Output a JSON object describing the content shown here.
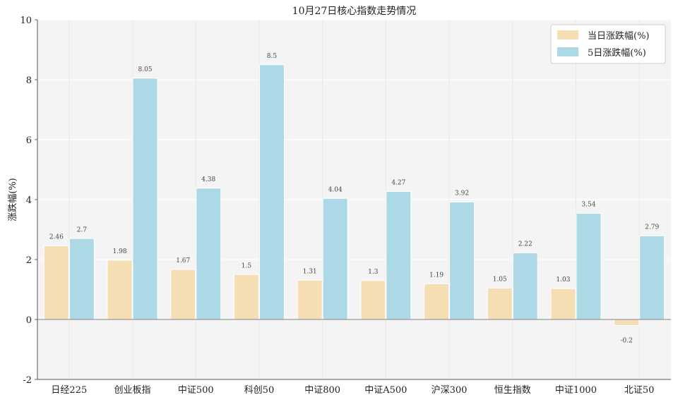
{
  "chart_data": {
    "type": "bar",
    "title": "10月27日核心指数走势情况",
    "xlabel": "",
    "ylabel": "涨跌幅(%)",
    "ylim": [
      -2,
      10
    ],
    "yticks": [
      -2,
      0,
      2,
      4,
      6,
      8,
      10
    ],
    "grid": true,
    "legend_position": "top-right",
    "categories": [
      "日经225",
      "创业板指",
      "中证500",
      "科创50",
      "中证800",
      "中证A500",
      "沪深300",
      "恒生指数",
      "中证1000",
      "北证50"
    ],
    "series": [
      {
        "name": "当日涨跌幅(%)",
        "color": "#f5deb3",
        "values": [
          2.46,
          1.98,
          1.67,
          1.5,
          1.31,
          1.3,
          1.19,
          1.05,
          1.03,
          -0.2
        ]
      },
      {
        "name": "5日涨跌幅(%)",
        "color": "#add8e6",
        "values": [
          2.7,
          8.05,
          4.38,
          8.5,
          4.04,
          4.27,
          3.92,
          2.22,
          3.54,
          2.79
        ]
      }
    ],
    "colors": {
      "plot_background": "#f4f4f4",
      "grid": "#ffffff",
      "axis": "#999999"
    }
  }
}
